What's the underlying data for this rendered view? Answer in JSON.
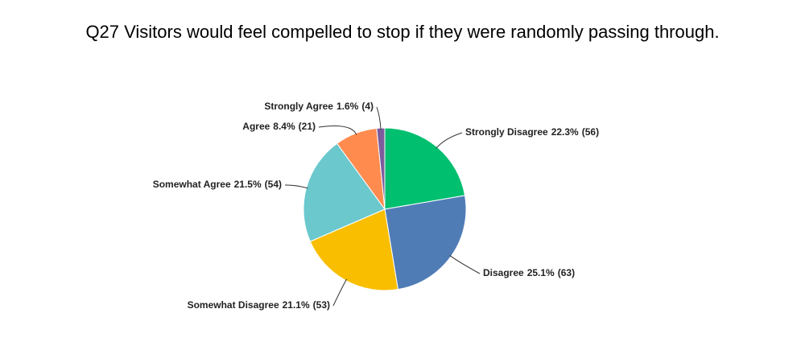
{
  "chart_data": {
    "type": "pie",
    "title": "Q27 Visitors would feel compelled to stop if they were randomly passing through.",
    "categories": [
      "Strongly Disagree",
      "Disagree",
      "Somewhat Disagree",
      "Somewhat Agree",
      "Agree",
      "Strongly Agree"
    ],
    "values": [
      22.3,
      25.1,
      21.1,
      21.5,
      8.4,
      1.6
    ],
    "value_labels": [
      "22.3%",
      "25.1%",
      "21.1%",
      "21.5%",
      "8.4%",
      "1.6%"
    ],
    "counts": [
      56,
      63,
      53,
      54,
      21,
      4
    ],
    "count_labels": [
      "(56)",
      "(63)",
      "(53)",
      "(54)",
      "(21)",
      "(4)"
    ],
    "colors": [
      "#00bf6f",
      "#507cb6",
      "#f9be00",
      "#6bc8cd",
      "#ff8b4f",
      "#7d5c9e"
    ]
  }
}
